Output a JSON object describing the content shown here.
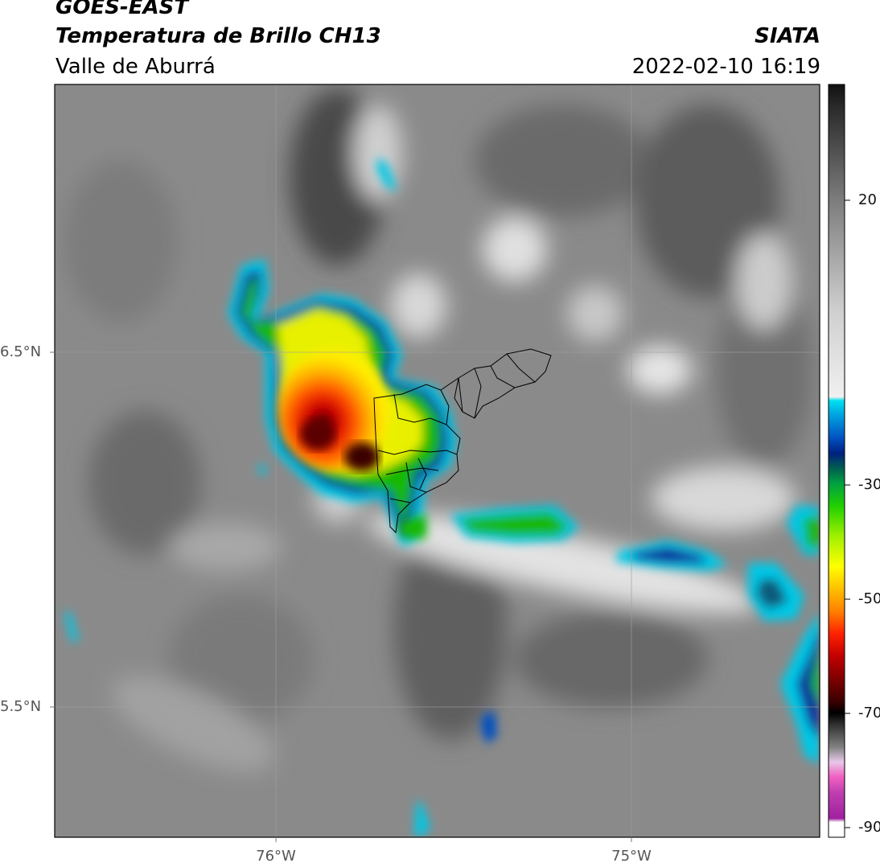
{
  "header": {
    "satellite": "GOES-EAST",
    "product": "Temperatura de Brillo CH13",
    "region": "Valle de Aburrá",
    "organization": "SIATA",
    "datetime": "2022-02-10 16:19"
  },
  "axes": {
    "lat_labels": [
      "6.5°N",
      "5.5°N"
    ],
    "lon_labels": [
      "76°W",
      "75°W"
    ]
  },
  "colorbar": {
    "tick_labels": [
      "20",
      "-30",
      "-50",
      "-70",
      "-90"
    ]
  }
}
